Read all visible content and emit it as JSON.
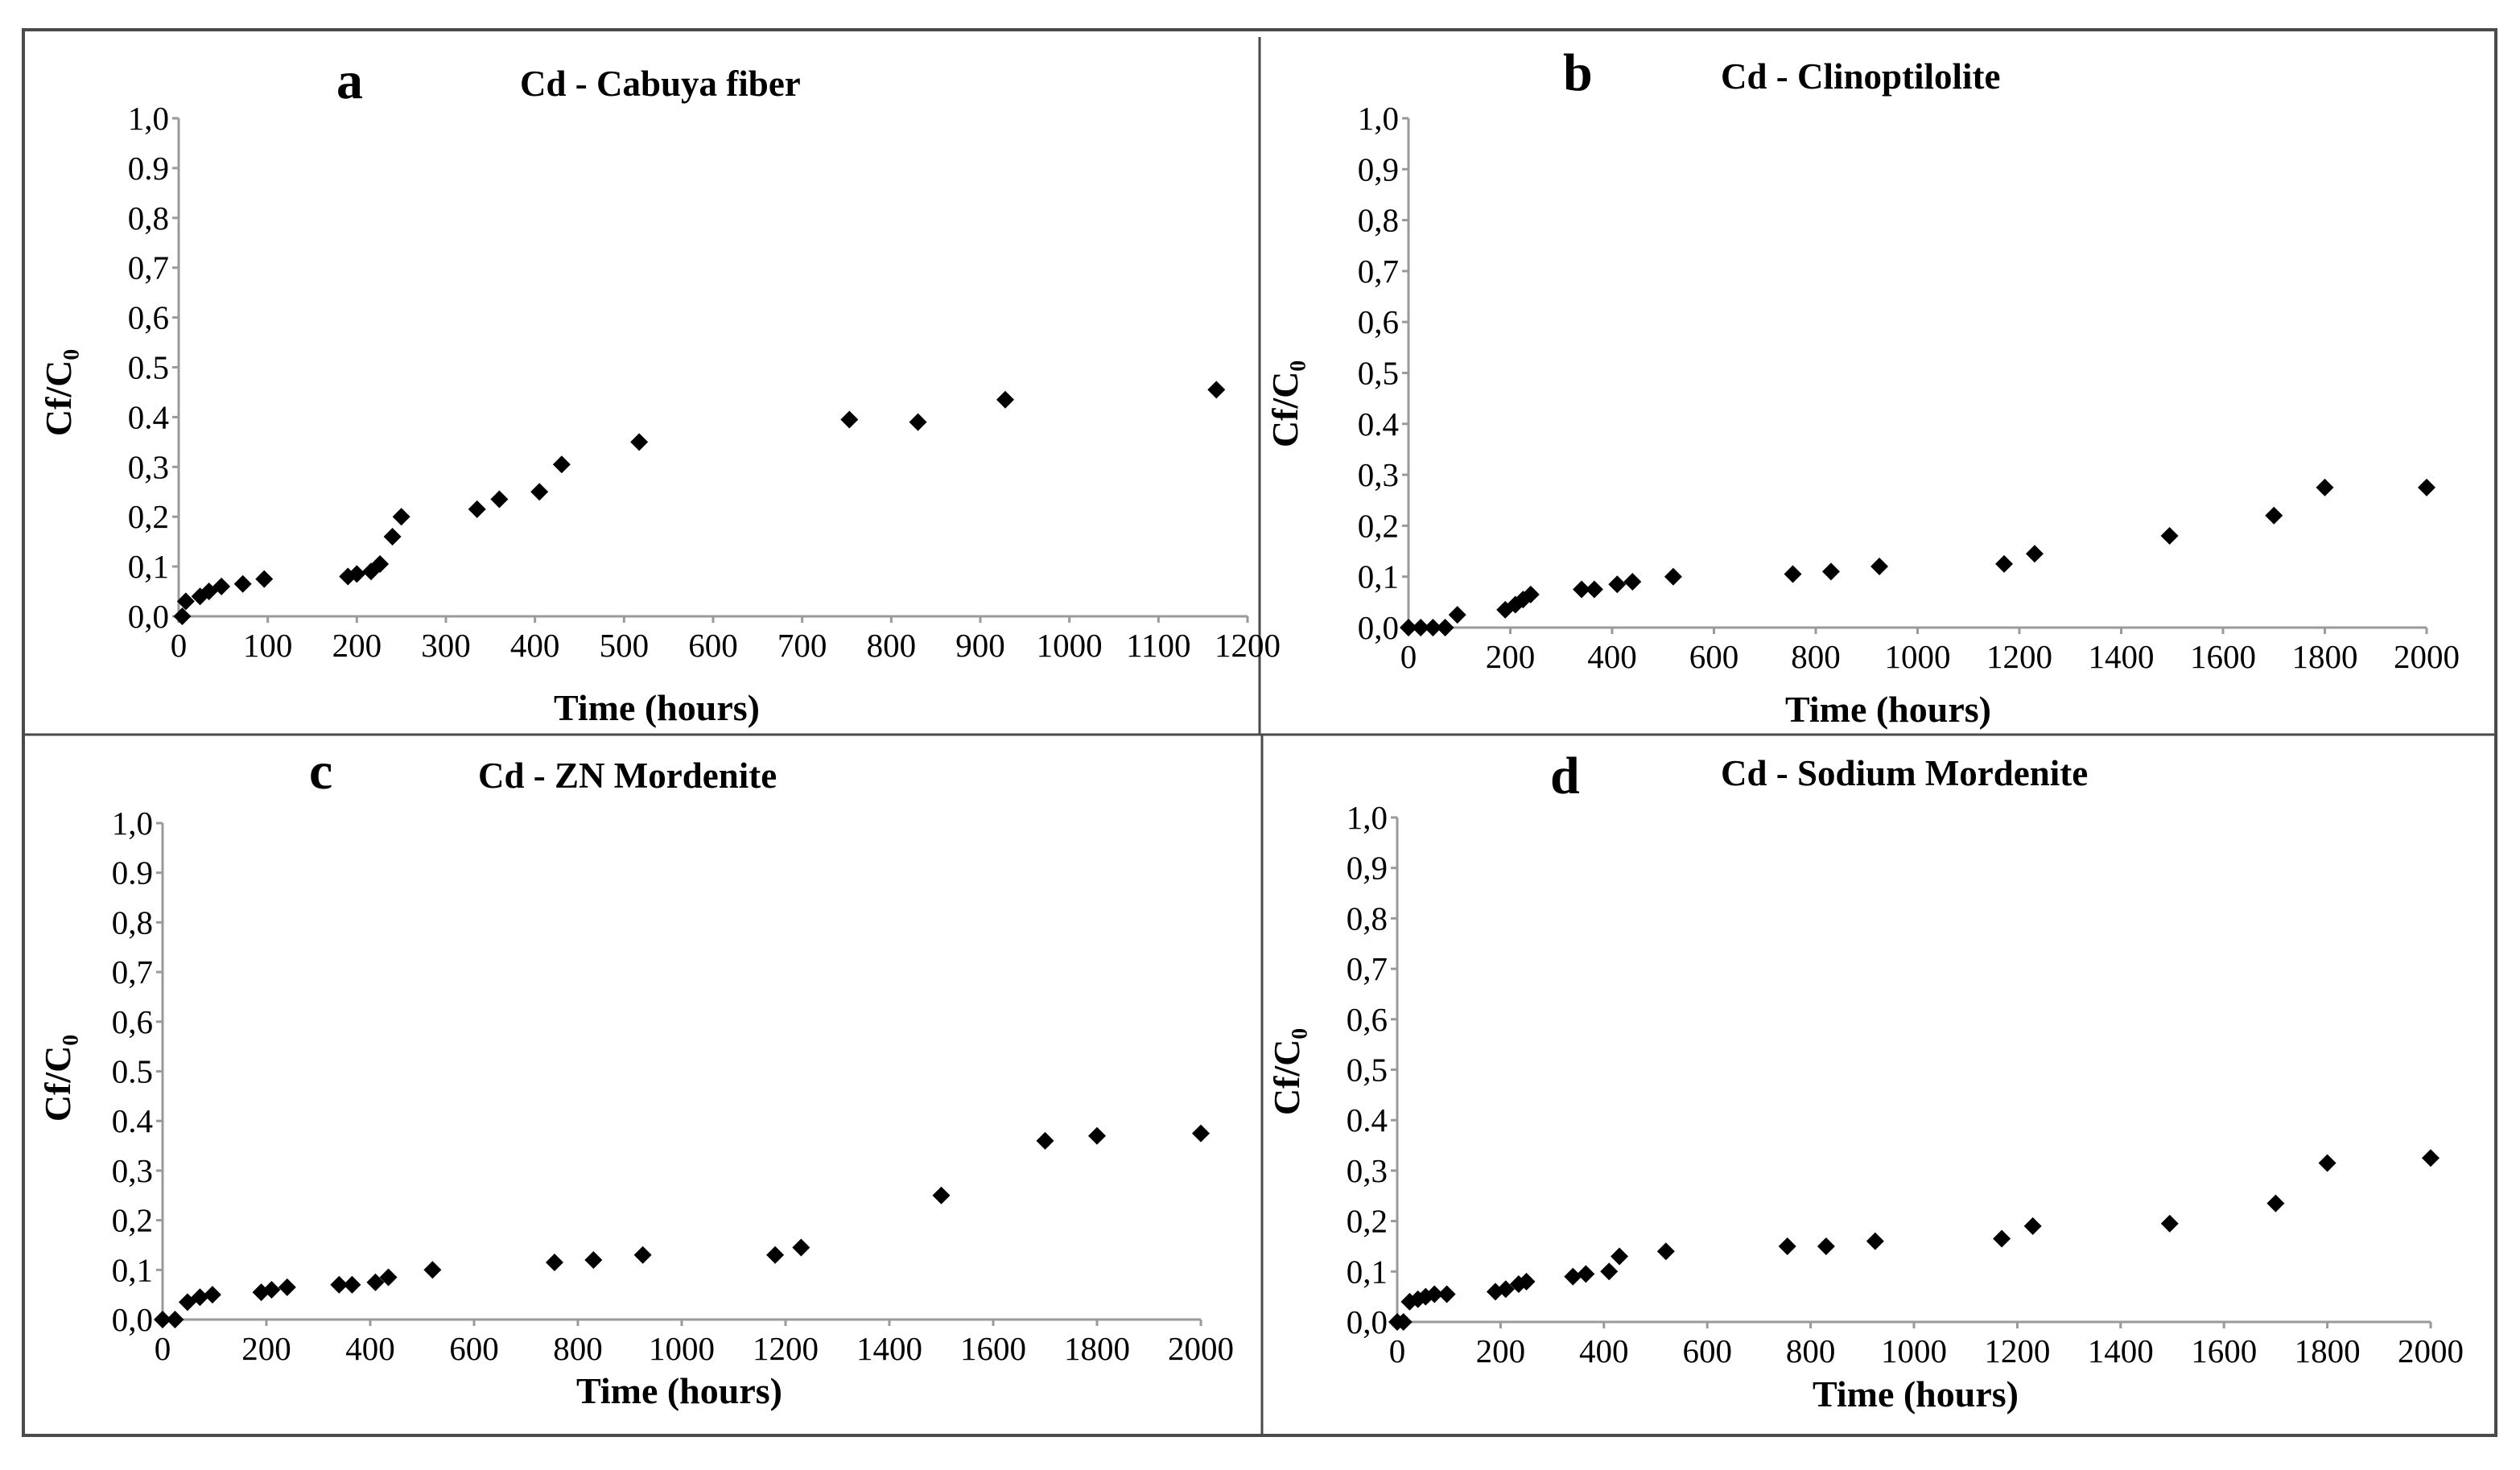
{
  "chart_data": [
    {
      "type": "scatter",
      "panel": "a",
      "title": "Cd - Cabuya fiber",
      "xlabel": "Time (hours)",
      "ylabel": "Cf/C₀",
      "xlim": [
        0,
        1200
      ],
      "ylim": [
        0,
        1
      ],
      "x_ticks": [
        "0",
        "100",
        "200",
        "300",
        "400",
        "500",
        "600",
        "700",
        "800",
        "900",
        "1000",
        "1100",
        "1200"
      ],
      "y_ticks": [
        "0,0",
        "0,1",
        "0,2",
        "0,3",
        "0.4",
        "0.5",
        "0,6",
        "0,7",
        "0,8",
        "0.9",
        "1,0"
      ],
      "series": [
        {
          "name": "Cd",
          "points": [
            [
              4,
              0.0
            ],
            [
              8,
              0.03
            ],
            [
              24,
              0.04
            ],
            [
              34,
              0.05
            ],
            [
              48,
              0.06
            ],
            [
              72,
              0.065
            ],
            [
              96,
              0.075
            ],
            [
              190,
              0.08
            ],
            [
              200,
              0.085
            ],
            [
              216,
              0.09
            ],
            [
              226,
              0.105
            ],
            [
              240,
              0.16
            ],
            [
              250,
              0.2
            ],
            [
              335,
              0.215
            ],
            [
              360,
              0.235
            ],
            [
              405,
              0.25
            ],
            [
              430,
              0.305
            ],
            [
              517,
              0.35
            ],
            [
              753,
              0.395
            ],
            [
              830,
              0.39
            ],
            [
              928,
              0.435
            ],
            [
              1165,
              0.455
            ]
          ]
        }
      ]
    },
    {
      "type": "scatter",
      "panel": "b",
      "title": "Cd - Clinoptilolite",
      "xlabel": "Time (hours)",
      "ylabel": "Cf/C₀",
      "xlim": [
        0,
        2000
      ],
      "ylim": [
        0,
        1
      ],
      "x_ticks": [
        "0",
        "200",
        "400",
        "600",
        "800",
        "1000",
        "1200",
        "1400",
        "1600",
        "1800",
        "2000"
      ],
      "y_ticks": [
        "0,0",
        "0,1",
        "0,2",
        "0,3",
        "0.4",
        "0,5",
        "0,6",
        "0,7",
        "0,8",
        "0,9",
        "1,0"
      ],
      "series": [
        {
          "name": "Cd",
          "points": [
            [
              0,
              0.0
            ],
            [
              24,
              0.0
            ],
            [
              48,
              0.0
            ],
            [
              72,
              0.0
            ],
            [
              96,
              0.025
            ],
            [
              190,
              0.035
            ],
            [
              210,
              0.045
            ],
            [
              225,
              0.055
            ],
            [
              240,
              0.065
            ],
            [
              340,
              0.075
            ],
            [
              365,
              0.075
            ],
            [
              410,
              0.085
            ],
            [
              440,
              0.09
            ],
            [
              520,
              0.1
            ],
            [
              755,
              0.105
            ],
            [
              830,
              0.11
            ],
            [
              925,
              0.12
            ],
            [
              1170,
              0.125
            ],
            [
              1230,
              0.145
            ],
            [
              1495,
              0.18
            ],
            [
              1700,
              0.22
            ],
            [
              1800,
              0.275
            ],
            [
              2000,
              0.275
            ]
          ]
        }
      ]
    },
    {
      "type": "scatter",
      "panel": "c",
      "title": "Cd - ZN Mordenite",
      "xlabel": "Time (hours)",
      "ylabel": "Cf/C₀",
      "xlim": [
        0,
        2000
      ],
      "ylim": [
        0,
        1
      ],
      "x_ticks": [
        "0",
        "200",
        "400",
        "600",
        "800",
        "1000",
        "1200",
        "1400",
        "1600",
        "1800",
        "2000"
      ],
      "y_ticks": [
        "0,0",
        "0,1",
        "0,2",
        "0,3",
        "0.4",
        "0.5",
        "0,6",
        "0,7",
        "0,8",
        "0.9",
        "1,0"
      ],
      "series": [
        {
          "name": "Cd",
          "points": [
            [
              0,
              0.0
            ],
            [
              24,
              0.0
            ],
            [
              48,
              0.035
            ],
            [
              72,
              0.045
            ],
            [
              96,
              0.05
            ],
            [
              190,
              0.055
            ],
            [
              210,
              0.06
            ],
            [
              240,
              0.065
            ],
            [
              340,
              0.07
            ],
            [
              365,
              0.07
            ],
            [
              410,
              0.075
            ],
            [
              435,
              0.085
            ],
            [
              520,
              0.1
            ],
            [
              755,
              0.115
            ],
            [
              830,
              0.12
            ],
            [
              925,
              0.13
            ],
            [
              1180,
              0.13
            ],
            [
              1230,
              0.145
            ],
            [
              1500,
              0.25
            ],
            [
              1700,
              0.36
            ],
            [
              1800,
              0.37
            ],
            [
              2000,
              0.375
            ]
          ]
        }
      ]
    },
    {
      "type": "scatter",
      "panel": "d",
      "title": "Cd - Sodium Mordenite",
      "xlabel": "Time (hours)",
      "ylabel": "Cf/C₀",
      "xlim": [
        0,
        2000
      ],
      "ylim": [
        0,
        1
      ],
      "x_ticks": [
        "0",
        "200",
        "400",
        "600",
        "800",
        "1000",
        "1200",
        "1400",
        "1600",
        "1800",
        "2000"
      ],
      "y_ticks": [
        "0,0",
        "0,1",
        "0,2",
        "0,3",
        "0.4",
        "0,5",
        "0,6",
        "0,7",
        "0,8",
        "0,9",
        "1,0"
      ],
      "series": [
        {
          "name": "Cd",
          "points": [
            [
              0,
              0.0
            ],
            [
              12,
              0.0
            ],
            [
              24,
              0.04
            ],
            [
              40,
              0.045
            ],
            [
              55,
              0.05
            ],
            [
              72,
              0.055
            ],
            [
              96,
              0.055
            ],
            [
              190,
              0.06
            ],
            [
              210,
              0.065
            ],
            [
              235,
              0.075
            ],
            [
              250,
              0.08
            ],
            [
              340,
              0.09
            ],
            [
              365,
              0.095
            ],
            [
              410,
              0.1
            ],
            [
              430,
              0.13
            ],
            [
              520,
              0.14
            ],
            [
              755,
              0.15
            ],
            [
              830,
              0.15
            ],
            [
              925,
              0.16
            ],
            [
              1170,
              0.165
            ],
            [
              1230,
              0.19
            ],
            [
              1495,
              0.195
            ],
            [
              1700,
              0.235
            ],
            [
              1800,
              0.315
            ],
            [
              2000,
              0.325
            ]
          ]
        }
      ]
    }
  ]
}
